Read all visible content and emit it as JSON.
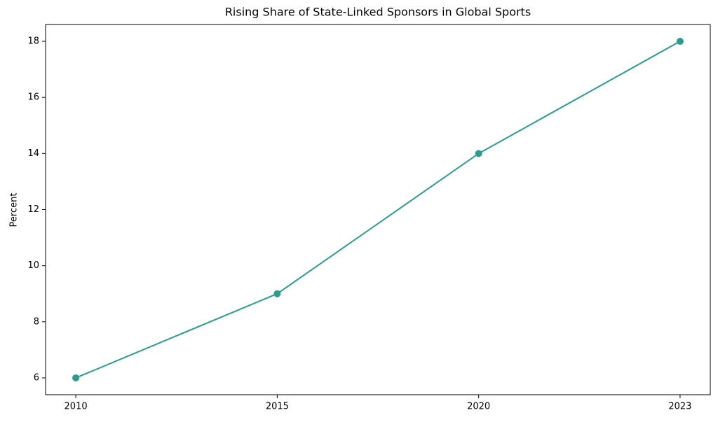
{
  "chart_data": {
    "type": "line",
    "title": "Rising Share of State-Linked Sponsors in Global Sports",
    "y_label": "Percent",
    "categories": [
      "2010",
      "2015",
      "2020",
      "2023"
    ],
    "series": [
      {
        "color": "#2a9d8f",
        "values": [
          6,
          9,
          14,
          18
        ]
      }
    ],
    "ylim": [
      5.4,
      18.6
    ],
    "yticks": [
      6,
      8,
      10,
      12,
      14,
      16,
      18
    ],
    "grid": false
  }
}
